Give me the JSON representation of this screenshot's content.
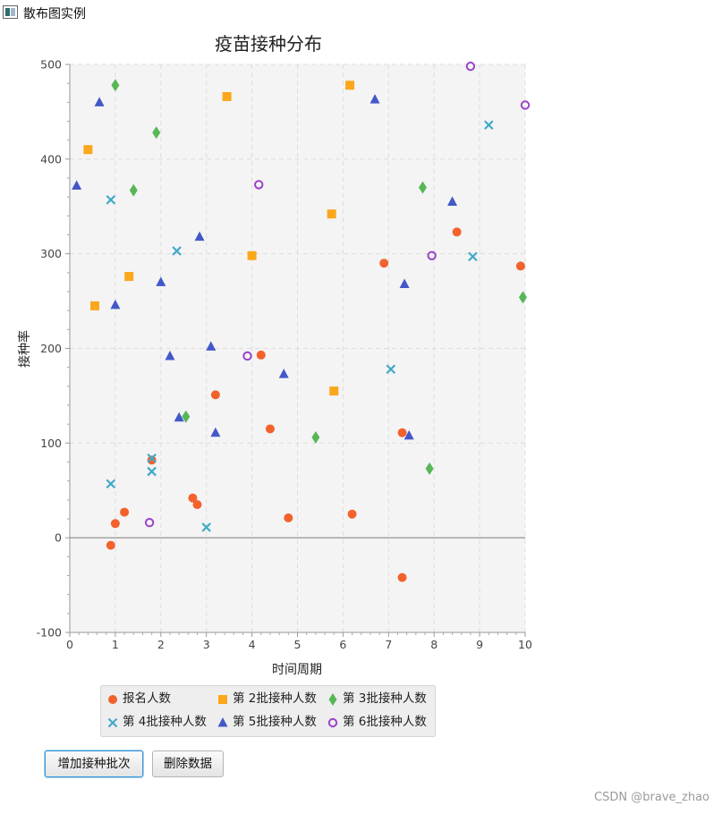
{
  "window": {
    "title": "散布图实例"
  },
  "chart_data": {
    "type": "scatter",
    "title": "疫苗接种分布",
    "xlabel": "时间周期",
    "ylabel": "接种率",
    "xlim": [
      0,
      10
    ],
    "ylim": [
      -100,
      500
    ],
    "x_ticks": [
      "0",
      "1",
      "2",
      "3",
      "4",
      "5",
      "6",
      "7",
      "8",
      "9",
      "10"
    ],
    "y_ticks": [
      "-100",
      "0",
      "100",
      "200",
      "300",
      "400",
      "500"
    ],
    "grid": true,
    "legend_position": "bottom",
    "series": [
      {
        "name": "报名人数",
        "marker": "circle",
        "color": "#f3622d",
        "points": [
          [
            0.9,
            -8
          ],
          [
            1.0,
            15
          ],
          [
            1.2,
            27
          ],
          [
            1.8,
            82
          ],
          [
            2.7,
            42
          ],
          [
            2.8,
            35
          ],
          [
            3.2,
            151
          ],
          [
            4.2,
            193
          ],
          [
            4.4,
            115
          ],
          [
            4.8,
            21
          ],
          [
            6.2,
            25
          ],
          [
            6.9,
            290
          ],
          [
            7.3,
            111
          ],
          [
            7.3,
            -42
          ],
          [
            8.5,
            323
          ],
          [
            9.9,
            287
          ]
        ]
      },
      {
        "name": "第 2批接种人数",
        "marker": "square",
        "color": "#fba71b",
        "points": [
          [
            0.4,
            410
          ],
          [
            0.55,
            245
          ],
          [
            1.3,
            276
          ],
          [
            3.45,
            466
          ],
          [
            4.0,
            298
          ],
          [
            5.75,
            342
          ],
          [
            5.8,
            155
          ],
          [
            6.15,
            478
          ]
        ]
      },
      {
        "name": "第 3批接种人数",
        "marker": "diamond",
        "color": "#57b757",
        "points": [
          [
            1.0,
            478
          ],
          [
            1.4,
            367
          ],
          [
            1.9,
            428
          ],
          [
            2.55,
            128
          ],
          [
            5.4,
            106
          ],
          [
            7.75,
            370
          ],
          [
            7.9,
            73
          ],
          [
            9.95,
            254
          ]
        ]
      },
      {
        "name": "第 4批接种人数",
        "marker": "x",
        "color": "#41a9c9",
        "points": [
          [
            0.9,
            357
          ],
          [
            0.9,
            57
          ],
          [
            1.8,
            84
          ],
          [
            1.8,
            70
          ],
          [
            2.35,
            303
          ],
          [
            3.0,
            11
          ],
          [
            7.05,
            178
          ],
          [
            8.85,
            297
          ],
          [
            9.2,
            436
          ]
        ]
      },
      {
        "name": "第 5批接种人数",
        "marker": "triangle",
        "color": "#4258c9",
        "points": [
          [
            0.15,
            372
          ],
          [
            0.65,
            460
          ],
          [
            1.0,
            246
          ],
          [
            2.0,
            270
          ],
          [
            2.2,
            192
          ],
          [
            2.4,
            127
          ],
          [
            2.85,
            318
          ],
          [
            3.1,
            202
          ],
          [
            3.2,
            111
          ],
          [
            4.7,
            173
          ],
          [
            6.7,
            463
          ],
          [
            7.35,
            268
          ],
          [
            7.45,
            108
          ],
          [
            8.4,
            355
          ]
        ]
      },
      {
        "name": "第 6批接种人数",
        "marker": "ring",
        "color": "#9a42c8",
        "points": [
          [
            1.75,
            16
          ],
          [
            3.9,
            192
          ],
          [
            4.15,
            373
          ],
          [
            7.95,
            298
          ],
          [
            8.8,
            498
          ],
          [
            10.0,
            457
          ]
        ]
      }
    ]
  },
  "buttons": {
    "add_label": "增加接种批次",
    "delete_label": "删除数据"
  },
  "watermark": "CSDN @brave_zhao"
}
